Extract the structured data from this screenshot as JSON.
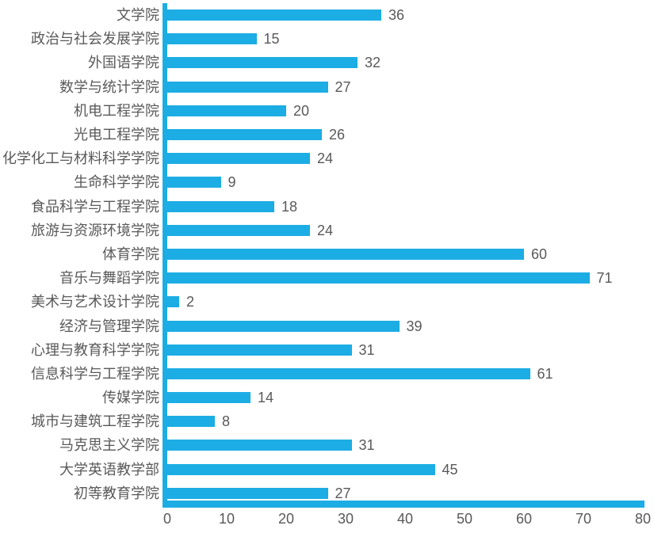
{
  "chart_data": {
    "type": "bar",
    "orientation": "horizontal",
    "title": "",
    "xlabel": "",
    "ylabel": "",
    "categories": [
      "文学院",
      "政治与社会发展学院",
      "外国语学院",
      "数学与统计学院",
      "机电工程学院",
      "光电工程学院",
      "化学化工与材料科学学院",
      "生命科学学院",
      "食品科学与工程学院",
      "旅游与资源环境学院",
      "体育学院",
      "音乐与舞蹈学院",
      "美术与艺术设计学院",
      "经济与管理学院",
      "心理与教育科学学院",
      "信息科学与工程学院",
      "传媒学院",
      "城市与建筑工程学院",
      "马克思主义学院",
      "大学英语教学部",
      "初等教育学院"
    ],
    "values": [
      36,
      15,
      32,
      27,
      20,
      26,
      24,
      9,
      18,
      24,
      60,
      71,
      2,
      39,
      31,
      61,
      14,
      8,
      31,
      45,
      27
    ],
    "data_labels_shown": true,
    "x_ticks": [
      "0",
      "10",
      "20",
      "30",
      "40",
      "50",
      "60",
      "70",
      "80"
    ],
    "xlim": [
      0,
      80
    ],
    "grid": false,
    "legend": "none",
    "bar_color": "#1CADE4",
    "text_color": "#595959",
    "background_color": "#FFFFFF"
  }
}
